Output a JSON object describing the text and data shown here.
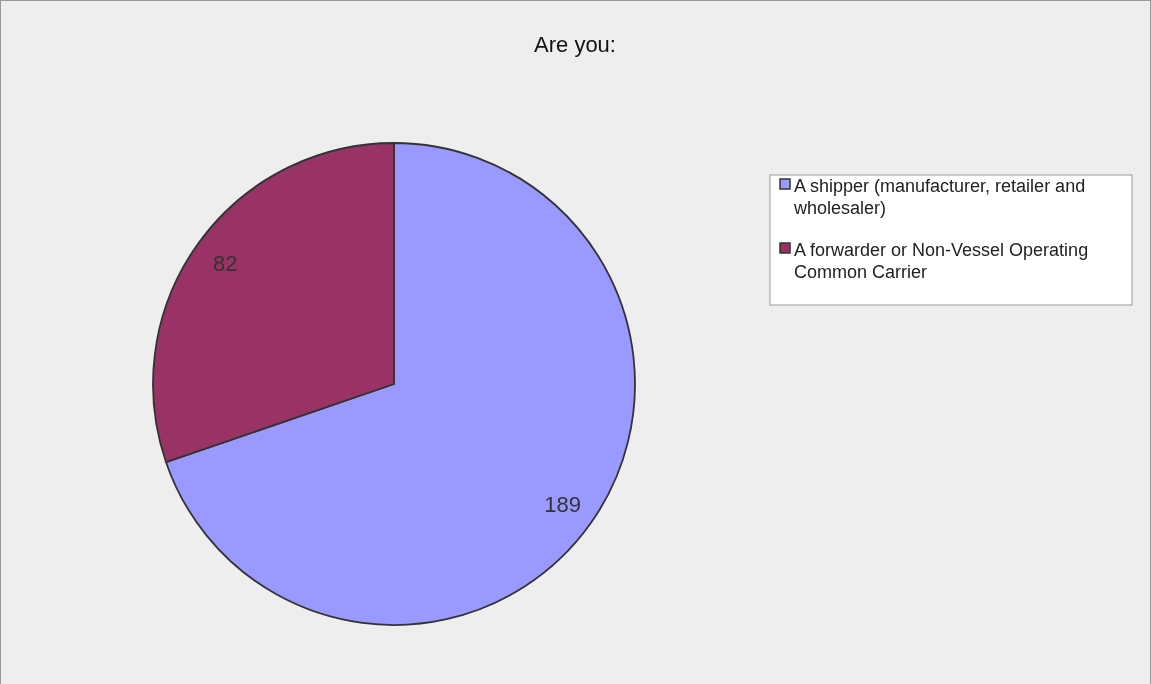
{
  "chart_data": {
    "type": "pie",
    "title": "Are you:",
    "categories": [
      "A shipper (manufacturer, retailer and wholesaler)",
      "A forwarder or Non-Vessel Operating Common Carrier"
    ],
    "values": [
      189,
      82
    ],
    "colors": [
      "#9999ff",
      "#993366"
    ],
    "data_labels": true,
    "legend": "right"
  }
}
